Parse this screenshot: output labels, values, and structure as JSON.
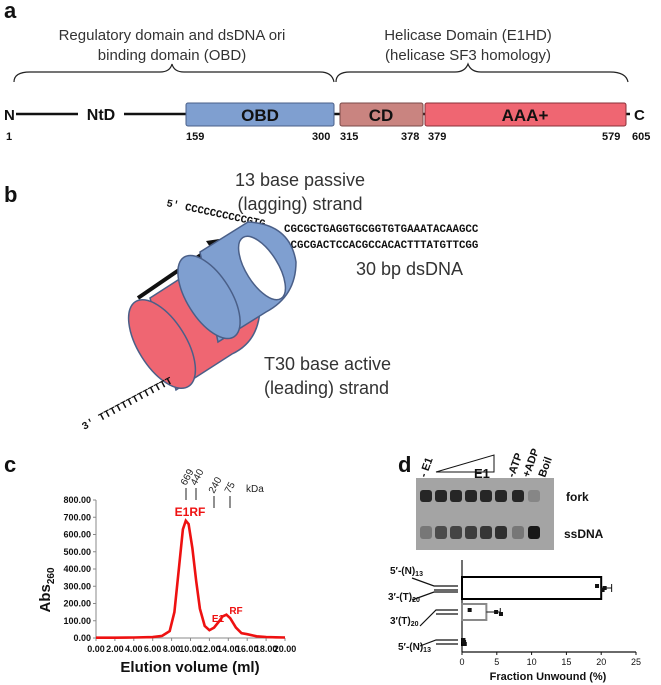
{
  "panel_a": {
    "letter": "a",
    "regulatory_header": [
      "Regulatory domain and dsDNA ori",
      "binding domain (OBD)"
    ],
    "helicase_header": [
      "Helicase Domain (E1HD)",
      "(helicase SF3 homology)"
    ],
    "n_term": "N",
    "c_term": "C",
    "ntd_label": "NtD",
    "domains": [
      {
        "name": "OBD",
        "start": "159",
        "end": "300",
        "color": "#7f9fd0"
      },
      {
        "name": "CD",
        "start": "315",
        "end": "378",
        "color": "#c98480"
      },
      {
        "name": "AAA+",
        "start": "379",
        "end": "579",
        "color": "#ef6672"
      }
    ],
    "num_start": "1",
    "num_end": "605"
  },
  "panel_b": {
    "letter": "b",
    "passive_label": [
      "13 base passive",
      "(lagging) strand"
    ],
    "active_label": [
      "T30 base active",
      "(leading) strand"
    ],
    "dsdna_label": "30 bp dsDNA",
    "strand5": "5′ CCCCCCCCCCGTG",
    "strand3": "3′ TTTTTTTTTTTTT",
    "top_seq": "CGCGCTGAGGTGCGGTGTGAAATACAAGCC",
    "bottom_seq": "GCGCGACTCCACGCCACACTTTATGTTCGG"
  },
  "panel_c": {
    "letter": "c",
    "markers": [
      "669",
      "440",
      "240",
      "75",
      "kDa"
    ],
    "peak_labels": [
      "E1RF",
      "E1",
      "RF"
    ]
  },
  "panel_d": {
    "letter": "d",
    "gel_lanes": [
      "- E1",
      "E1",
      "-ATP",
      "+ADP",
      "Boil"
    ],
    "gel_bands": [
      "fork",
      "ssDNA"
    ],
    "substrate_labels": [
      "5′-(N)13",
      "3′-(T)20",
      "3′(T)20",
      "5′-(N)13"
    ]
  },
  "chart_data": [
    {
      "type": "line",
      "title": "",
      "xlabel": "Elution volume (ml)",
      "ylabel": "Abs260",
      "xlim": [
        0,
        20
      ],
      "ylim": [
        0,
        800
      ],
      "xticks": [
        "0.00",
        "2.00",
        "4.00",
        "6.00",
        "8.00",
        "10.00",
        "12.00",
        "14.00",
        "16.00",
        "18.00",
        "20.00"
      ],
      "yticks": [
        "0.00",
        "100.00",
        "200.00",
        "300.00",
        "400.00",
        "500.00",
        "600.00",
        "700.00",
        "800.00"
      ],
      "series": [
        {
          "color": "#ee1111",
          "x": [
            0,
            2,
            4,
            6,
            7,
            7.8,
            8.3,
            8.8,
            9.2,
            9.5,
            9.8,
            10.2,
            10.6,
            11.0,
            11.5,
            12.0,
            12.5,
            13.0,
            13.4,
            13.8,
            14.2,
            14.8,
            15.4,
            16.0,
            17.0,
            18.0,
            19.0,
            20.0
          ],
          "y": [
            2,
            2,
            3,
            5,
            12,
            40,
            150,
            420,
            630,
            680,
            660,
            520,
            330,
            170,
            70,
            45,
            60,
            95,
            125,
            135,
            115,
            60,
            28,
            22,
            10,
            6,
            4,
            3
          ]
        }
      ]
    },
    {
      "type": "bar",
      "title": "",
      "xlabel": "Fraction Unwound (%)",
      "ylabel": "",
      "xlim": [
        0,
        25
      ],
      "xticks": [
        "0",
        "5",
        "10",
        "15",
        "20",
        "25"
      ],
      "categories": [
        "5′-(N)13 / 3′-(T)20 fork",
        "3′(T)20",
        "5′-(N)13"
      ],
      "values": [
        20,
        3.5,
        0.2
      ],
      "errors": [
        1.5,
        2.0,
        0.2
      ],
      "bar_colors": [
        "#000000",
        "#8a8a8a",
        "#000000"
      ]
    }
  ]
}
